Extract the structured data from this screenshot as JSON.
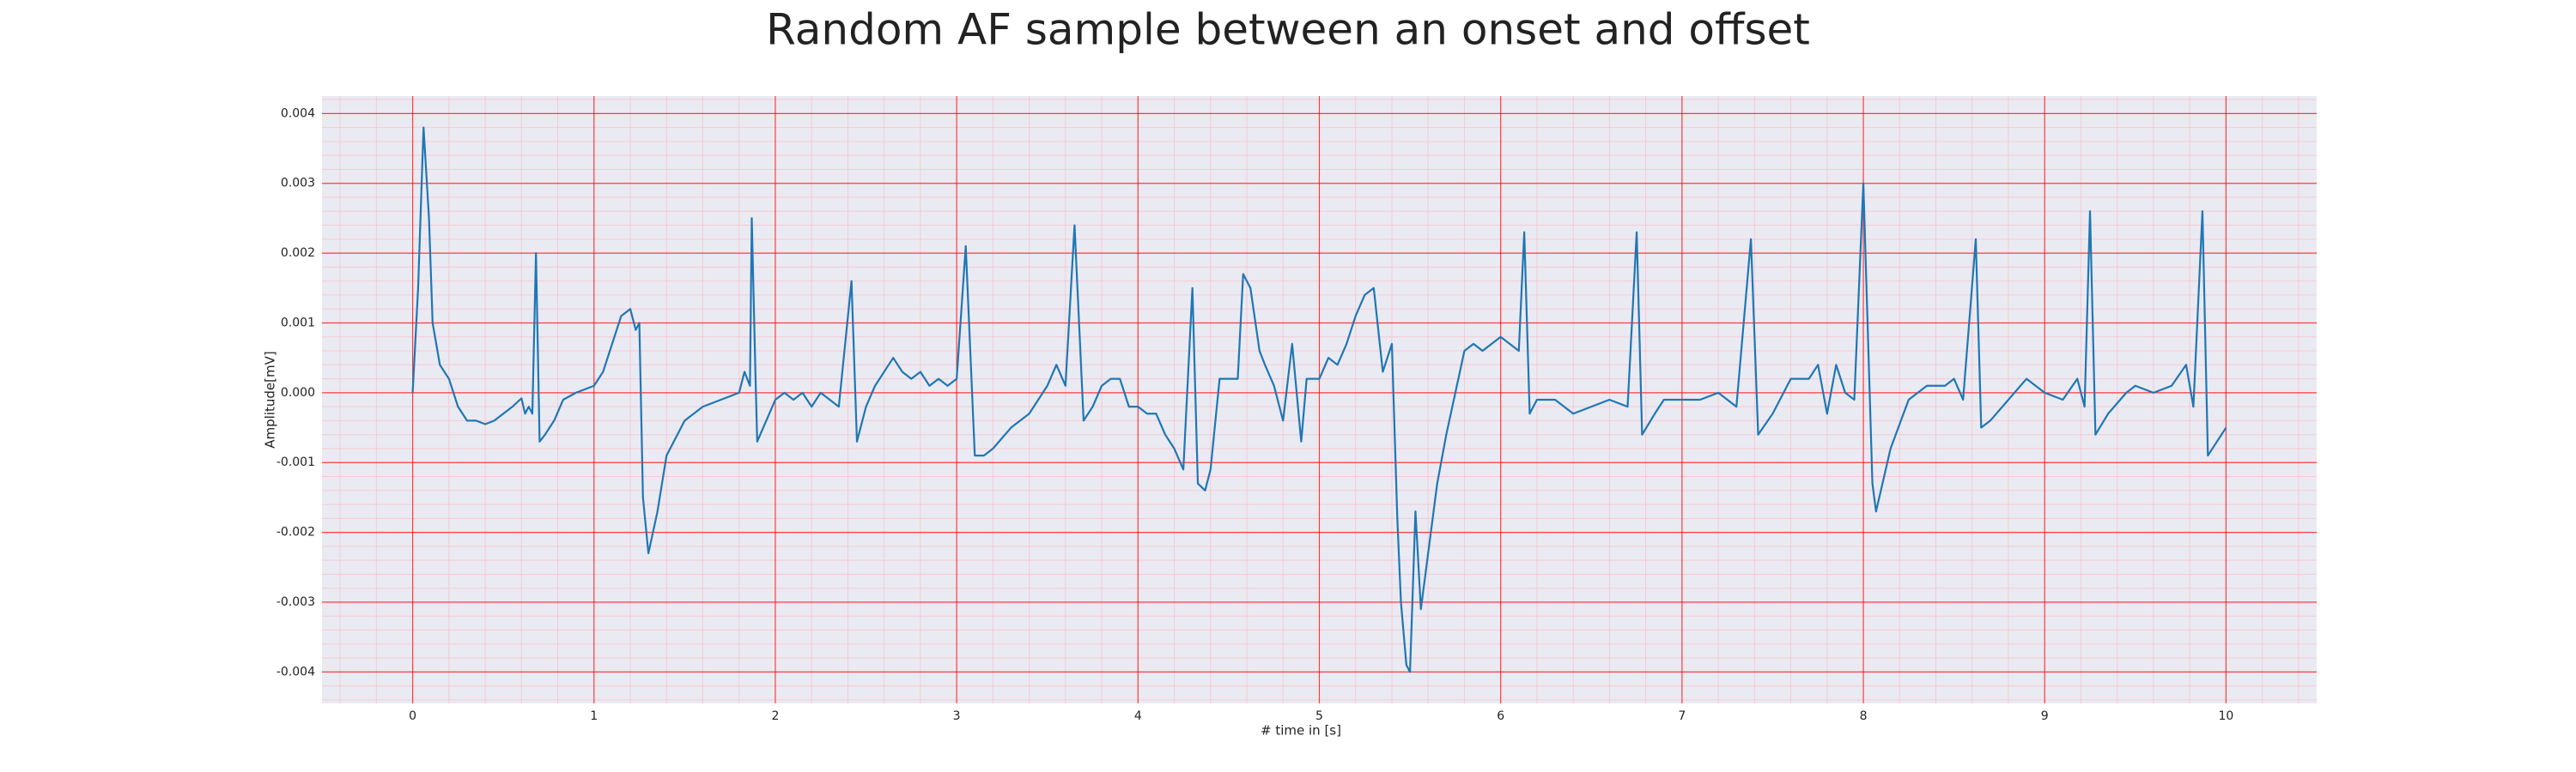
{
  "chart_data": {
    "type": "line",
    "title": "Random AF sample between an onset and offset",
    "xlabel": "# time in [s]",
    "ylabel": "Amplitude[mV]",
    "xlim": [
      -0.5,
      10.5
    ],
    "ylim": [
      -0.00445,
      0.00425
    ],
    "xticks": [
      0,
      1,
      2,
      3,
      4,
      5,
      6,
      7,
      8,
      9,
      10
    ],
    "yticks": [
      -0.004,
      -0.003,
      -0.002,
      -0.001,
      {
        "value": 0,
        "label": "0.000"
      },
      0.001,
      0.002,
      0.003,
      0.004
    ],
    "grid": true,
    "minor_grid": true,
    "minor_xstep": 0.2,
    "minor_ystep": 0.0002,
    "background": "#eaeaf2",
    "grid_color": "#ff0000",
    "minor_grid_color": "#ffb6c1",
    "series": [
      {
        "color": "#1f77b4",
        "x": [
          0,
          0.03,
          0.06,
          0.09,
          0.11,
          0.15,
          0.2,
          0.25,
          0.3,
          0.35,
          0.4,
          0.45,
          0.5,
          0.55,
          0.6,
          0.62,
          0.64,
          0.66,
          0.68,
          0.7,
          0.73,
          0.78,
          0.83,
          0.9,
          1.0,
          1.05,
          1.1,
          1.15,
          1.2,
          1.23,
          1.25,
          1.27,
          1.3,
          1.35,
          1.4,
          1.5,
          1.6,
          1.7,
          1.8,
          1.83,
          1.86,
          1.87,
          1.89,
          1.9,
          1.95,
          2.0,
          2.05,
          2.1,
          2.15,
          2.2,
          2.25,
          2.3,
          2.35,
          2.42,
          2.45,
          2.5,
          2.55,
          2.6,
          2.65,
          2.7,
          2.75,
          2.8,
          2.85,
          2.9,
          2.95,
          3.0,
          3.05,
          3.1,
          3.15,
          3.2,
          3.3,
          3.4,
          3.5,
          3.55,
          3.6,
          3.65,
          3.7,
          3.75,
          3.8,
          3.85,
          3.9,
          3.95,
          4.0,
          4.05,
          4.1,
          4.15,
          4.2,
          4.25,
          4.3,
          4.33,
          4.37,
          4.4,
          4.45,
          4.5,
          4.55,
          4.58,
          4.62,
          4.67,
          4.7,
          4.75,
          4.8,
          4.85,
          4.9,
          4.93,
          5.0,
          5.05,
          5.1,
          5.15,
          5.2,
          5.25,
          5.3,
          5.35,
          5.4,
          5.43,
          5.45,
          5.48,
          5.5,
          5.53,
          5.56,
          5.6,
          5.65,
          5.7,
          5.75,
          5.8,
          5.85,
          5.9,
          6.0,
          6.05,
          6.1,
          6.13,
          6.16,
          6.2,
          6.3,
          6.4,
          6.5,
          6.6,
          6.7,
          6.75,
          6.78,
          6.85,
          6.9,
          7.0,
          7.1,
          7.2,
          7.3,
          7.38,
          7.42,
          7.5,
          7.6,
          7.7,
          7.75,
          7.8,
          7.85,
          7.9,
          7.95,
          8.0,
          8.05,
          8.07,
          8.15,
          8.25,
          8.35,
          8.45,
          8.5,
          8.55,
          8.62,
          8.65,
          8.7,
          8.8,
          8.9,
          9.0,
          9.1,
          9.18,
          9.22,
          9.25,
          9.28,
          9.35,
          9.45,
          9.5,
          9.6,
          9.7,
          9.78,
          9.82,
          9.87,
          9.9,
          9.95,
          10.0
        ],
        "values": [
          0,
          0.0015,
          0.0038,
          0.0025,
          0.001,
          0.0004,
          0.0002,
          -0.0002,
          -0.0004,
          -0.0004,
          -0.00045,
          -0.0004,
          -0.0003,
          -0.0002,
          -8e-05,
          -0.0003,
          -0.0002,
          -0.0003,
          0.002,
          -0.0007,
          -0.0006,
          -0.0004,
          -0.0001,
          0,
          0.0001,
          0.0003,
          0.0007,
          0.0011,
          0.0012,
          0.0009,
          0.001,
          -0.0015,
          -0.0023,
          -0.0017,
          -0.0009,
          -0.0004,
          -0.0002,
          -0.0001,
          0,
          0.0003,
          0.0001,
          0.0025,
          0.0003,
          -0.0007,
          -0.0004,
          -0.0001,
          0,
          -0.0001,
          0,
          -0.0002,
          0,
          -0.0001,
          -0.0002,
          0.0016,
          -0.0007,
          -0.0002,
          0.0001,
          0.0003,
          0.0005,
          0.0003,
          0.0002,
          0.0003,
          0.0001,
          0.0002,
          0.0001,
          0.0002,
          0.0021,
          -0.0009,
          -0.0009,
          -0.0008,
          -0.0005,
          -0.0003,
          0.0001,
          0.0004,
          0.0001,
          0.0024,
          -0.0004,
          -0.0002,
          0.0001,
          0.0002,
          0.0002,
          -0.0002,
          -0.0002,
          -0.0003,
          -0.0003,
          -0.0006,
          -0.0008,
          -0.0011,
          0.0015,
          -0.0013,
          -0.0014,
          -0.0011,
          0.0002,
          0.0002,
          0.0002,
          0.0017,
          0.0015,
          0.0006,
          0.0004,
          0.0001,
          -0.0004,
          0.0007,
          -0.0007,
          0.0002,
          0.0002,
          0.0005,
          0.0004,
          0.0007,
          0.0011,
          0.0014,
          0.0015,
          0.0003,
          0.0007,
          -0.0018,
          -0.003,
          -0.0039,
          -0.004,
          -0.0017,
          -0.0031,
          -0.0023,
          -0.0013,
          -0.0006,
          0,
          0.0006,
          0.0007,
          0.0006,
          0.0008,
          0.0007,
          0.0006,
          0.0023,
          -0.0003,
          -0.0001,
          -0.0001,
          -0.0003,
          -0.0002,
          -0.0001,
          -0.0002,
          0.0023,
          -0.0006,
          -0.0003,
          -0.0001,
          -0.0001,
          -0.0001,
          0,
          -0.0002,
          0.0022,
          -0.0006,
          -0.0003,
          0.0002,
          0.0002,
          0.0004,
          -0.0003,
          0.0004,
          0,
          -0.0001,
          0.003,
          -0.0013,
          -0.0017,
          -0.0008,
          -0.0001,
          0.0001,
          0.0001,
          0.0002,
          -0.0001,
          0.0022,
          -0.0005,
          -0.0004,
          -0.0001,
          0.0002,
          0,
          -0.0001,
          0.0002,
          -0.0002,
          0.0026,
          -0.0006,
          -0.0003,
          0,
          0.0001,
          0,
          0.0001,
          0.0004,
          -0.0002,
          0.0026,
          -0.0009,
          -0.0007,
          -0.0005
        ]
      }
    ]
  }
}
